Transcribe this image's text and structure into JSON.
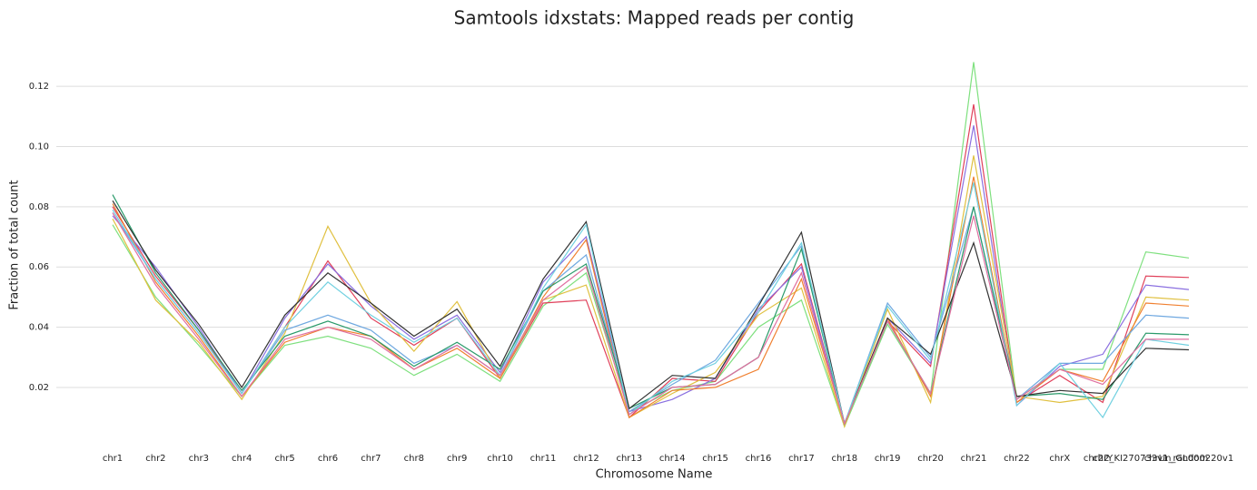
{
  "chart_data": {
    "type": "line",
    "title": "Samtools idxstats: Mapped reads per contig",
    "x_label": "Chromosome Name",
    "y_label": "Fraction of total count",
    "categories": [
      "chr1",
      "chr2",
      "chr3",
      "chr4",
      "chr5",
      "chr6",
      "chr7",
      "chr8",
      "chr9",
      "chr10",
      "chr11",
      "chr12",
      "chr13",
      "chr14",
      "chr15",
      "chr16",
      "chr17",
      "chr18",
      "chr19",
      "chr20",
      "chr21",
      "chr22",
      "chrX",
      "chrY",
      "chr22_KI270733v1_random",
      "chrUn_GL000220v1"
    ],
    "ylim": [
      0.001,
      0.136
    ],
    "yticks": [
      0.02,
      0.04,
      0.06,
      0.08,
      {
        "value": 0.1,
        "label": "0.10"
      },
      0.12
    ],
    "grid": true,
    "series": [
      {
        "color": "#7ee07e",
        "values": [
          0.074,
          0.05,
          0.034,
          0.017,
          0.034,
          0.037,
          0.033,
          0.024,
          0.031,
          0.022,
          0.047,
          0.058,
          0.012,
          0.019,
          0.022,
          0.04,
          0.049,
          0.007,
          0.041,
          0.018,
          0.128,
          0.016,
          0.026,
          0.026,
          0.065,
          0.063
        ]
      },
      {
        "color": "#e0405a",
        "values": [
          0.08,
          0.057,
          0.039,
          0.018,
          0.04,
          0.062,
          0.043,
          0.034,
          0.043,
          0.023,
          0.048,
          0.049,
          0.01,
          0.023,
          0.022,
          0.045,
          0.061,
          0.008,
          0.042,
          0.027,
          0.114,
          0.015,
          0.024,
          0.015,
          0.057,
          0.0565
        ]
      },
      {
        "color": "#8a6fe0",
        "values": [
          0.077,
          0.06,
          0.04,
          0.018,
          0.043,
          0.061,
          0.047,
          0.036,
          0.044,
          0.025,
          0.055,
          0.07,
          0.012,
          0.016,
          0.023,
          0.046,
          0.06,
          0.008,
          0.043,
          0.028,
          0.107,
          0.014,
          0.027,
          0.031,
          0.054,
          0.0525
        ]
      },
      {
        "color": "#e0c040",
        "values": [
          0.076,
          0.049,
          0.035,
          0.016,
          0.038,
          0.0735,
          0.048,
          0.032,
          0.0485,
          0.023,
          0.049,
          0.054,
          0.01,
          0.018,
          0.025,
          0.044,
          0.053,
          0.007,
          0.046,
          0.015,
          0.097,
          0.017,
          0.015,
          0.017,
          0.05,
          0.049
        ]
      },
      {
        "color": "#f08030",
        "values": [
          0.081,
          0.055,
          0.037,
          0.017,
          0.035,
          0.04,
          0.037,
          0.026,
          0.033,
          0.023,
          0.05,
          0.069,
          0.01,
          0.019,
          0.02,
          0.026,
          0.056,
          0.008,
          0.043,
          0.017,
          0.09,
          0.015,
          0.026,
          0.022,
          0.048,
          0.047
        ]
      },
      {
        "color": "#6fa8e0",
        "values": [
          0.078,
          0.056,
          0.038,
          0.018,
          0.039,
          0.044,
          0.039,
          0.028,
          0.034,
          0.024,
          0.052,
          0.064,
          0.012,
          0.021,
          0.029,
          0.048,
          0.067,
          0.008,
          0.048,
          0.03,
          0.08,
          0.016,
          0.028,
          0.028,
          0.044,
          0.043
        ]
      },
      {
        "color": "#2a9a6a",
        "values": [
          0.084,
          0.058,
          0.039,
          0.019,
          0.037,
          0.042,
          0.037,
          0.027,
          0.035,
          0.026,
          0.052,
          0.061,
          0.013,
          0.02,
          0.021,
          0.03,
          0.066,
          0.008,
          0.042,
          0.018,
          0.08,
          0.017,
          0.018,
          0.016,
          0.038,
          0.0375
        ]
      },
      {
        "color": "#333333",
        "values": [
          0.082,
          0.059,
          0.041,
          0.02,
          0.044,
          0.058,
          0.048,
          0.037,
          0.046,
          0.027,
          0.056,
          0.075,
          0.013,
          0.024,
          0.023,
          0.047,
          0.0715,
          0.008,
          0.043,
          0.031,
          0.068,
          0.017,
          0.019,
          0.018,
          0.033,
          0.0325
        ]
      },
      {
        "color": "#70d0e0",
        "values": [
          0.079,
          0.056,
          0.038,
          0.018,
          0.04,
          0.055,
          0.044,
          0.035,
          0.043,
          0.024,
          0.053,
          0.074,
          0.011,
          0.022,
          0.028,
          0.045,
          0.068,
          0.008,
          0.047,
          0.029,
          0.088,
          0.014,
          0.028,
          0.01,
          0.036,
          0.034
        ]
      },
      {
        "color": "#e070a0",
        "values": [
          0.078,
          0.054,
          0.036,
          0.017,
          0.036,
          0.04,
          0.036,
          0.026,
          0.034,
          0.024,
          0.049,
          0.06,
          0.011,
          0.02,
          0.021,
          0.03,
          0.058,
          0.008,
          0.042,
          0.018,
          0.077,
          0.016,
          0.026,
          0.021,
          0.036,
          0.036
        ]
      }
    ]
  }
}
